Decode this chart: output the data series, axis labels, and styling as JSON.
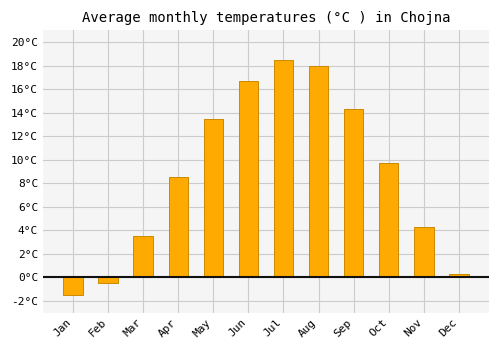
{
  "title": "Average monthly temperatures (°C ) in Chojna",
  "months": [
    "Jan",
    "Feb",
    "Mar",
    "Apr",
    "May",
    "Jun",
    "Jul",
    "Aug",
    "Sep",
    "Oct",
    "Nov",
    "Dec"
  ],
  "values": [
    -1.5,
    -0.5,
    3.5,
    8.5,
    13.5,
    16.7,
    18.5,
    18.0,
    14.3,
    9.7,
    4.3,
    0.3
  ],
  "bar_color": "#FFAA00",
  "bar_edge_color": "#CC8800",
  "background_color": "#ffffff",
  "plot_bg_color": "#f5f5f5",
  "grid_color": "#cccccc",
  "ylim": [
    -3,
    21
  ],
  "yticks": [
    -2,
    0,
    2,
    4,
    6,
    8,
    10,
    12,
    14,
    16,
    18,
    20
  ],
  "title_fontsize": 10,
  "tick_fontsize": 8,
  "zero_line_color": "#111111"
}
